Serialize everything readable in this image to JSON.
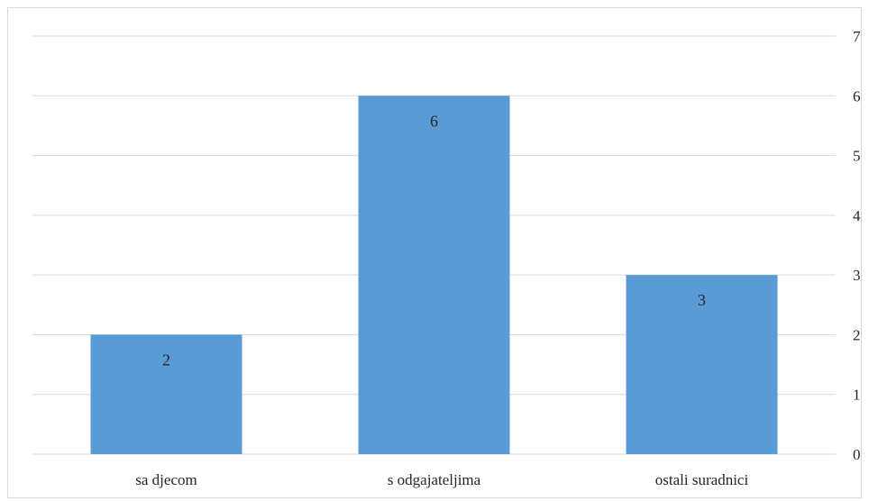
{
  "chart_data": {
    "type": "bar",
    "categories": [
      "sa djecom",
      "s odgajateljima",
      "ostali suradnici"
    ],
    "values": [
      2,
      6,
      3
    ],
    "data_labels": [
      "2",
      "6",
      "3"
    ],
    "y_ticks": [
      "0",
      "1",
      "2",
      "3",
      "4",
      "5",
      "6",
      "7"
    ],
    "ylim": [
      0,
      7
    ],
    "y_axis_side": "right",
    "grid": true,
    "bar_color": "#5b9bd5",
    "grid_color": "#d9d9d9"
  }
}
